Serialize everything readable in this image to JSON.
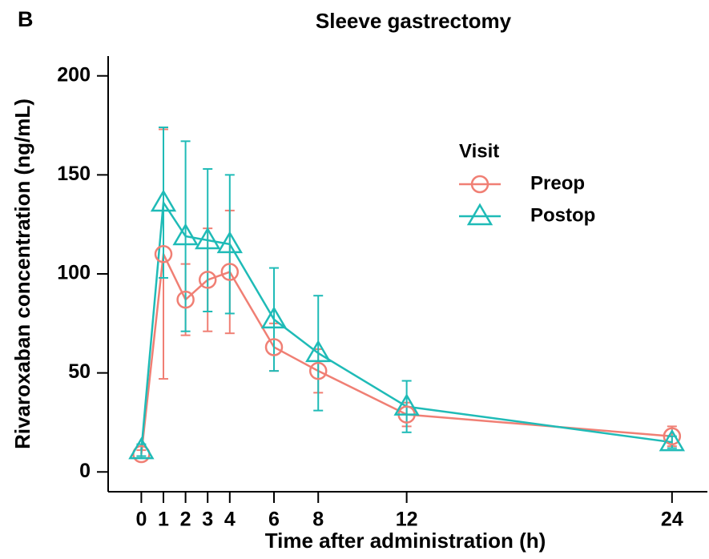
{
  "panel_label": "B",
  "chart_data": {
    "type": "line",
    "title": "Sleeve gastrectomy",
    "x_label": "Time after administration (h)",
    "y_label": "Rivaroxaban concentration (ng/mL)",
    "x": [
      0,
      1,
      2,
      3,
      4,
      6,
      8,
      12,
      24
    ],
    "xlim": [
      -1.5,
      25.6
    ],
    "xticks": [
      0,
      1,
      2,
      3,
      4,
      6,
      8,
      12,
      24
    ],
    "ylim": [
      -10,
      210
    ],
    "yticks": [
      0,
      50,
      100,
      150,
      200
    ],
    "legend_title": "Visit",
    "legend_position": "upper right",
    "series": [
      {
        "name": "Preop",
        "color": "#f07f74",
        "marker": "circle",
        "values": [
          9,
          110,
          87,
          97,
          101,
          63,
          51,
          29,
          18
        ],
        "errors": [
          2,
          63,
          18,
          26,
          31,
          12,
          11,
          6,
          5
        ]
      },
      {
        "name": "Postop",
        "color": "#1fbbb7",
        "marker": "triangle",
        "values": [
          11,
          136,
          119,
          117,
          115,
          77,
          60,
          33,
          15
        ],
        "errors": [
          3,
          38,
          48,
          36,
          35,
          26,
          29,
          13,
          3
        ]
      }
    ]
  }
}
